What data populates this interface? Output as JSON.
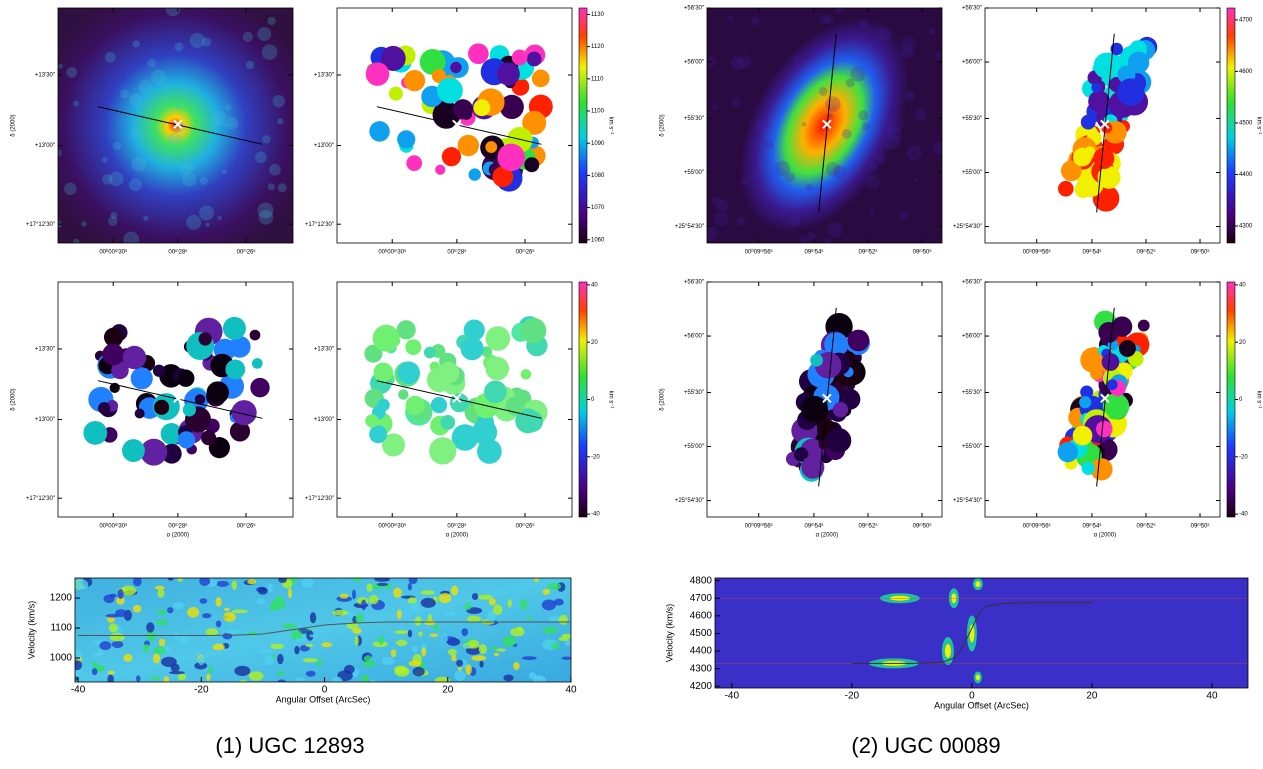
{
  "galaxies": [
    {
      "caption": "(1) UGC 12893",
      "dec_label": "δ (2000)",
      "ra_label": "α (2000)",
      "ra_ticks": [
        "00ʰ00ᵐ30ˢ",
        "00ᵐ28ˢ",
        "00ᵐ26ˢ"
      ],
      "dec_ticks": [
        "+13′30″",
        "+13′00″",
        "+17°12′30″"
      ],
      "colorbars": [
        {
          "unit": "km s⁻¹",
          "lim": [
            1059,
            1132
          ],
          "ticks": [
            1060,
            1070,
            1080,
            1090,
            1100,
            1110,
            1120,
            1130
          ]
        },
        {
          "unit": "km s⁻¹",
          "lim": [
            -41,
            41
          ],
          "ticks": [
            -40,
            -20,
            0,
            20,
            40
          ]
        }
      ]
    },
    {
      "caption": "(2) UGC 00089",
      "dec_label": "δ (2000)",
      "ra_label": "α (2000)",
      "ra_ticks": [
        "00ʰ09ᵐ56ˢ",
        "09ᵐ54ˢ",
        "09ᵐ52ˢ",
        "09ᵐ50ˢ"
      ],
      "dec_ticks": [
        "+56′30″",
        "+56′00″",
        "+55′30″",
        "+55′00″",
        "+25°54′30″"
      ],
      "colorbars": [
        {
          "unit": "km s⁻¹",
          "lim": [
            4267,
            4723
          ],
          "ticks": [
            4300,
            4400,
            4500,
            4600,
            4700
          ]
        },
        {
          "unit": "km s⁻¹",
          "lim": [
            -41,
            41
          ],
          "ticks": [
            -40,
            -20,
            0,
            20,
            40
          ]
        }
      ]
    }
  ],
  "chart_data": [
    {
      "type": "line",
      "xlabel": "Angular Offset (ArcSec)",
      "ylabel": "Velocity (km/s)",
      "xlim": [
        -40.5,
        40
      ],
      "ylim": [
        920,
        1267
      ],
      "xticks": [
        -40,
        -20,
        0,
        20,
        40
      ],
      "yticks": [
        1000,
        1100,
        1200
      ],
      "series": [
        {
          "color": "#555555",
          "x": [
            -40,
            -30,
            -20,
            -15,
            -10,
            -5,
            0,
            5,
            10,
            20,
            30,
            40
          ],
          "values": [
            1075,
            1075,
            1075,
            1076,
            1080,
            1095,
            1110,
            1117,
            1120,
            1120,
            1120,
            1120
          ]
        }
      ]
    },
    {
      "type": "line",
      "xlabel": "Angular Offset (ArcSec)",
      "ylabel": "Velocity (km/s)",
      "xlim": [
        -42.8,
        46
      ],
      "ylim": [
        4190,
        4815
      ],
      "xticks": [
        -40,
        -20,
        0,
        20,
        40
      ],
      "yticks": [
        4200,
        4300,
        4400,
        4500,
        4600,
        4700,
        4800
      ],
      "series": [
        {
          "color": "#333333",
          "x": [
            -20,
            -10,
            -5,
            -3,
            -2,
            -1,
            0,
            1,
            2,
            5,
            10,
            20
          ],
          "values": [
            4330,
            4330,
            4335,
            4360,
            4400,
            4460,
            4530,
            4600,
            4650,
            4670,
            4675,
            4675
          ]
        }
      ]
    }
  ]
}
